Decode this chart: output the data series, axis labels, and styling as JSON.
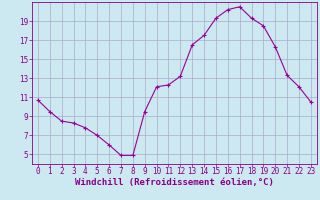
{
  "x": [
    0,
    1,
    2,
    3,
    4,
    5,
    6,
    7,
    8,
    9,
    10,
    11,
    12,
    13,
    14,
    15,
    16,
    17,
    18,
    19,
    20,
    21,
    22,
    23
  ],
  "y": [
    10.7,
    9.5,
    8.5,
    8.3,
    7.8,
    7.0,
    6.0,
    4.9,
    4.9,
    9.5,
    12.1,
    12.3,
    13.2,
    16.5,
    17.5,
    19.3,
    20.2,
    20.5,
    19.3,
    18.5,
    16.3,
    13.3,
    12.1,
    10.5
  ],
  "line_color": "#990099",
  "marker": "+",
  "marker_size": 3,
  "marker_linewidth": 0.8,
  "linewidth": 0.8,
  "xlabel": "Windchill (Refroidissement éolien,°C)",
  "xlim": [
    -0.5,
    23.5
  ],
  "ylim": [
    4,
    21
  ],
  "yticks": [
    5,
    7,
    9,
    11,
    13,
    15,
    17,
    19
  ],
  "xticks": [
    0,
    1,
    2,
    3,
    4,
    5,
    6,
    7,
    8,
    9,
    10,
    11,
    12,
    13,
    14,
    15,
    16,
    17,
    18,
    19,
    20,
    21,
    22,
    23
  ],
  "bg_color": "#cce8f0",
  "grid_color": "#aaaacc",
  "text_color": "#880088",
  "xlabel_fontsize": 6.5,
  "tick_fontsize": 5.5
}
